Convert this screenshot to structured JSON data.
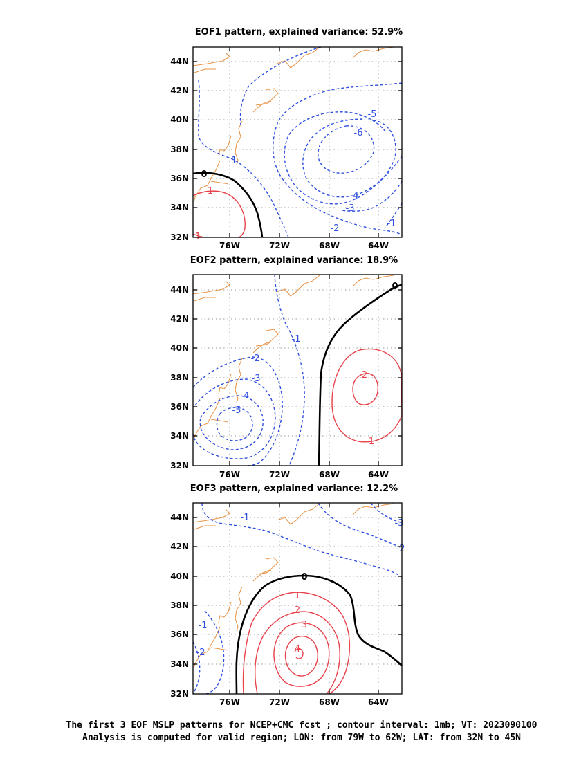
{
  "caption": {
    "line1": "The first 3 EOF MSLP patterns for NCEP+CMC fcst ; contour interval: 1mb; VT: 2023090100",
    "line2": "Analysis is computed for valid region; LON: from 79W to 62W; LAT: from 32N to 45N"
  },
  "panels": [
    {
      "title": "EOF1 pattern, explained variance: 52.9%",
      "x_ticks": [
        "76W",
        "72W",
        "68W",
        "64W"
      ],
      "y_ticks": [
        "44N",
        "42N",
        "40N",
        "38N",
        "36N",
        "34N",
        "32N"
      ],
      "contour_labels": [
        "0",
        "1",
        "1",
        "-1",
        "-2",
        "-3",
        "-4",
        "-5",
        "-6",
        "-1"
      ]
    },
    {
      "title": "EOF2 pattern, explained variance: 18.9%",
      "x_ticks": [
        "76W",
        "72W",
        "68W",
        "64W"
      ],
      "y_ticks": [
        "44N",
        "42N",
        "40N",
        "38N",
        "36N",
        "34N",
        "32N"
      ],
      "contour_labels": [
        "0",
        "-1",
        "-2",
        "-3",
        "-4",
        "-5",
        "2",
        "1"
      ]
    },
    {
      "title": "EOF3 pattern, explained variance: 12.2%",
      "x_ticks": [
        "76W",
        "72W",
        "68W",
        "64W"
      ],
      "y_ticks": [
        "44N",
        "42N",
        "40N",
        "38N",
        "36N",
        "34N",
        "32N"
      ],
      "contour_labels": [
        "-1",
        "-3",
        "-2",
        "0",
        "1",
        "2",
        "3",
        "4",
        "-1",
        "-2"
      ]
    }
  ],
  "colors": {
    "negative_contour": "#2e4fe0",
    "positive_contour": "#e8414a",
    "zero_contour": "#000000",
    "coastline": "#e8964a"
  }
}
